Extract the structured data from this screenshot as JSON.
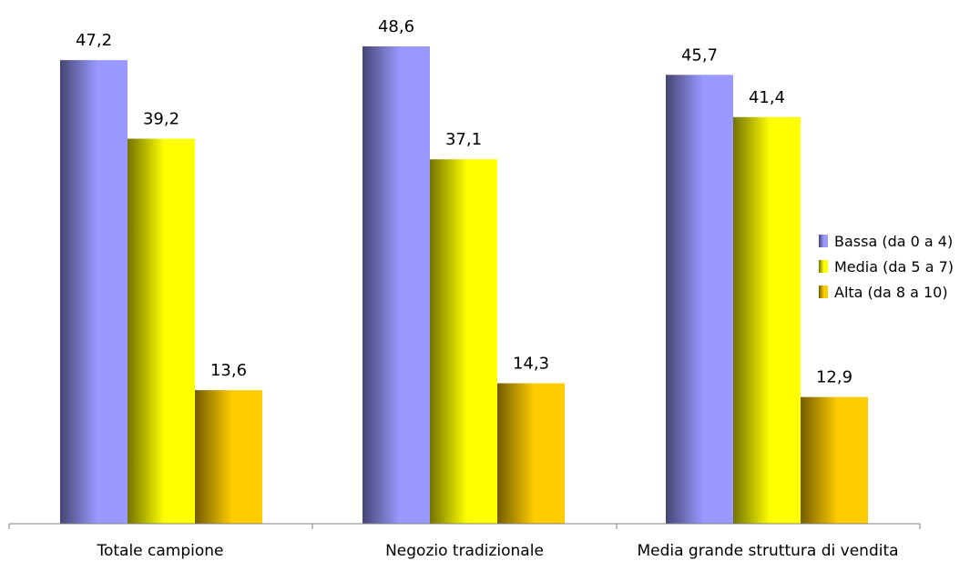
{
  "chart_data": {
    "type": "bar",
    "categories": [
      "Totale campione",
      "Negozio tradizionale",
      "Media grande struttura di vendita"
    ],
    "series": [
      {
        "name": "Bassa (da 0 a 4)",
        "values": [
          47.2,
          48.6,
          45.7
        ],
        "labels": [
          "47,2",
          "48,6",
          "45,7"
        ],
        "color": "#9999ff"
      },
      {
        "name": "Media (da 5 a 7)",
        "values": [
          39.2,
          37.1,
          41.4
        ],
        "labels": [
          "39,2",
          "37,1",
          "41,4"
        ],
        "color": "#ffff00"
      },
      {
        "name": "Alta (da 8 a 10)",
        "values": [
          13.6,
          14.3,
          12.9
        ],
        "labels": [
          "13,6",
          "14,3",
          "12,9"
        ],
        "color": "#ffcc00"
      }
    ],
    "ylim": [
      0,
      50
    ],
    "grid": false,
    "legend": "right"
  }
}
